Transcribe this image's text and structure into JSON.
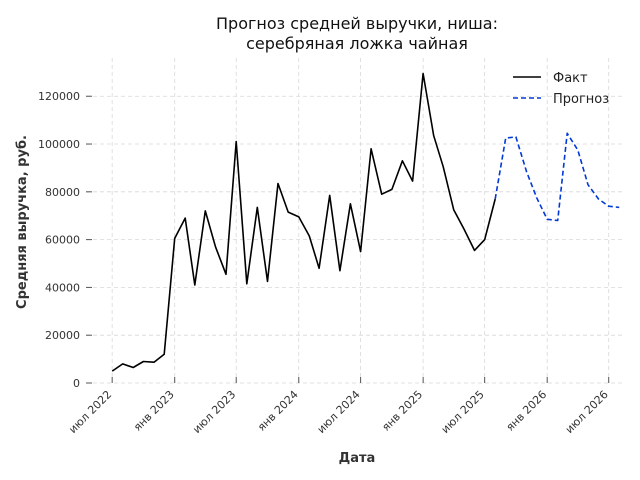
{
  "chart_data": {
    "type": "line",
    "title": "Прогноз средней выручки, ниша:\nсеребряная ложка чайная",
    "xlabel": "Дата",
    "ylabel": "Средняя выручка, руб.",
    "x_range": [
      "2022-04-15",
      "2026-08-15"
    ],
    "ylim": [
      0,
      136000
    ],
    "y_ticks": [
      0,
      20000,
      40000,
      60000,
      80000,
      100000,
      120000
    ],
    "x_ticks": [
      {
        "date": "2022-07-01",
        "label": "июл 2022"
      },
      {
        "date": "2023-01-01",
        "label": "янв 2023"
      },
      {
        "date": "2023-07-01",
        "label": "июл 2023"
      },
      {
        "date": "2024-01-01",
        "label": "янв 2024"
      },
      {
        "date": "2024-07-01",
        "label": "июл 2024"
      },
      {
        "date": "2025-01-01",
        "label": "янв 2025"
      },
      {
        "date": "2025-07-01",
        "label": "июл 2025"
      },
      {
        "date": "2026-01-01",
        "label": "янв 2026"
      },
      {
        "date": "2026-07-01",
        "label": "июл 2026"
      }
    ],
    "grid": true,
    "legend_position": "top-right",
    "series": [
      {
        "name": "Факт",
        "color": "#000000",
        "style": "solid",
        "points": [
          [
            "2022-07-01",
            5000
          ],
          [
            "2022-08-01",
            8000
          ],
          [
            "2022-09-01",
            6500
          ],
          [
            "2022-10-01",
            9000
          ],
          [
            "2022-11-01",
            8700
          ],
          [
            "2022-12-01",
            12000
          ],
          [
            "2023-01-01",
            60500
          ],
          [
            "2023-02-01",
            69000
          ],
          [
            "2023-03-01",
            41000
          ],
          [
            "2023-04-01",
            72000
          ],
          [
            "2023-05-01",
            57000
          ],
          [
            "2023-06-01",
            45500
          ],
          [
            "2023-07-01",
            101000
          ],
          [
            "2023-08-01",
            41500
          ],
          [
            "2023-09-01",
            73500
          ],
          [
            "2023-10-01",
            42500
          ],
          [
            "2023-11-01",
            83500
          ],
          [
            "2023-12-01",
            71500
          ],
          [
            "2024-01-01",
            69500
          ],
          [
            "2024-02-01",
            61500
          ],
          [
            "2024-03-01",
            48000
          ],
          [
            "2024-04-01",
            78500
          ],
          [
            "2024-05-01",
            47000
          ],
          [
            "2024-06-01",
            75000
          ],
          [
            "2024-07-01",
            55000
          ],
          [
            "2024-08-01",
            98000
          ],
          [
            "2024-09-01",
            79000
          ],
          [
            "2024-10-01",
            81000
          ],
          [
            "2024-11-01",
            93000
          ],
          [
            "2024-12-01",
            84500
          ],
          [
            "2025-01-01",
            129500
          ],
          [
            "2025-02-01",
            103500
          ],
          [
            "2025-03-01",
            90500
          ],
          [
            "2025-04-01",
            72500
          ],
          [
            "2025-05-01",
            64500
          ],
          [
            "2025-06-01",
            55500
          ],
          [
            "2025-07-01",
            60000
          ],
          [
            "2025-08-01",
            77000
          ]
        ]
      },
      {
        "name": "Прогноз",
        "color": "#0039d6",
        "style": "dashed",
        "points": [
          [
            "2025-08-01",
            77000
          ],
          [
            "2025-09-01",
            102500
          ],
          [
            "2025-10-01",
            103000
          ],
          [
            "2025-11-01",
            88500
          ],
          [
            "2025-12-01",
            77500
          ],
          [
            "2026-01-01",
            68500
          ],
          [
            "2026-02-01",
            68000
          ],
          [
            "2026-03-01",
            104500
          ],
          [
            "2026-04-01",
            97500
          ],
          [
            "2026-05-01",
            83000
          ],
          [
            "2026-06-01",
            77000
          ],
          [
            "2026-07-01",
            74000
          ],
          [
            "2026-08-01",
            73500
          ]
        ]
      }
    ]
  }
}
